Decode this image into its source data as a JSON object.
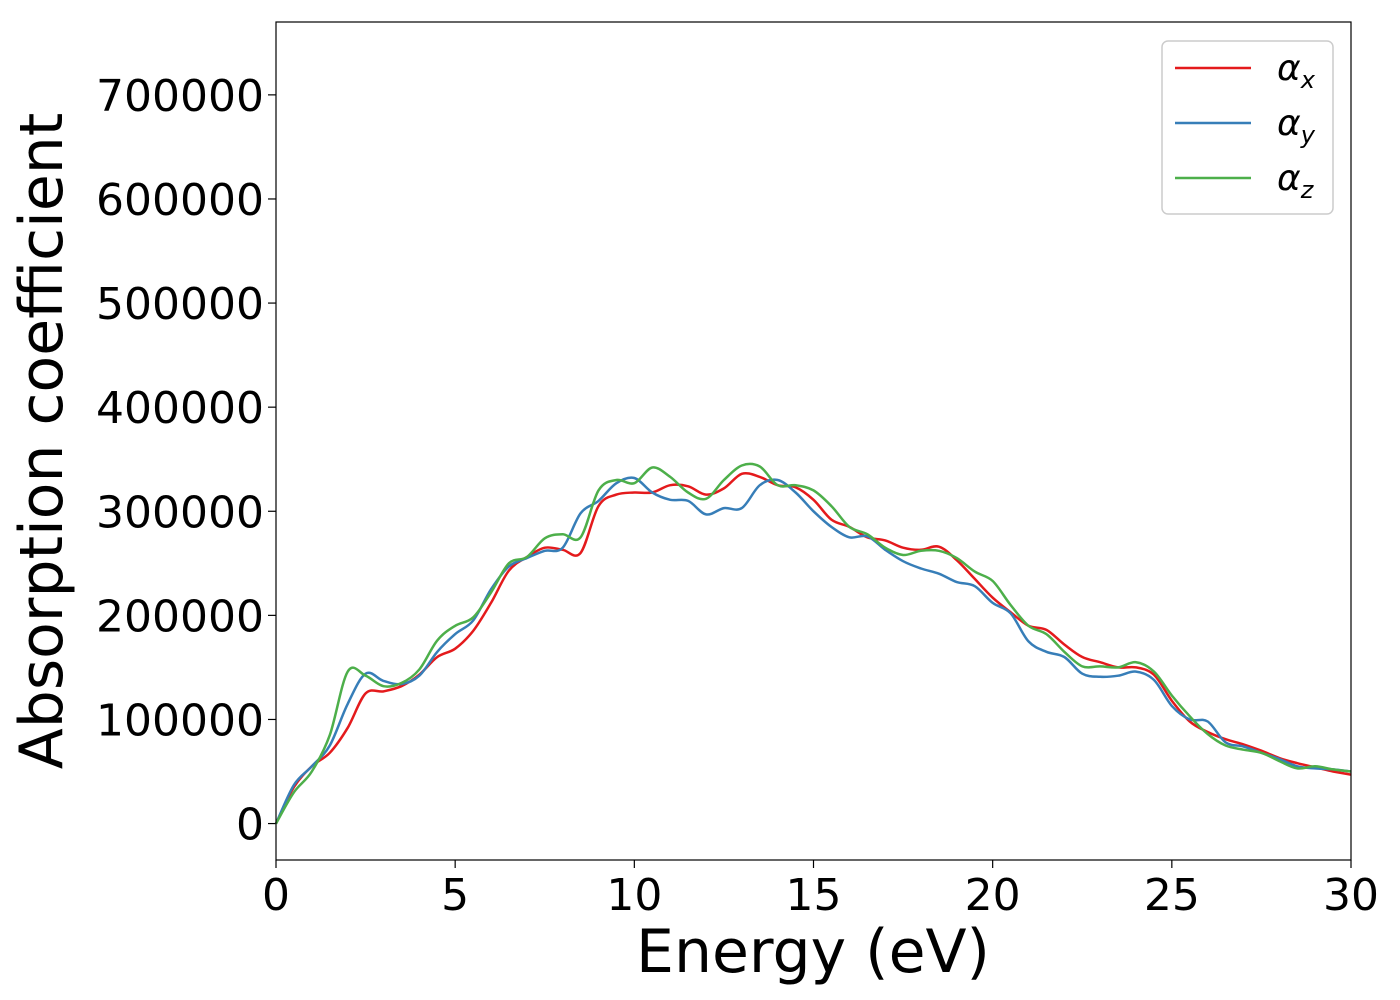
{
  "chart_data": {
    "type": "line",
    "title": "",
    "xlabel": "Energy (eV)",
    "ylabel": "Absorption coefficient",
    "xlim": [
      0,
      30
    ],
    "ylim": [
      -35000,
      770000
    ],
    "xticks": [
      0,
      5,
      10,
      15,
      20,
      25,
      30
    ],
    "yticks": [
      0,
      100000,
      200000,
      300000,
      400000,
      500000,
      600000,
      700000
    ],
    "legend_position": "top-right",
    "x": [
      0,
      0.5,
      1,
      1.5,
      2,
      2.5,
      3,
      3.5,
      4,
      4.5,
      5,
      5.5,
      6,
      6.5,
      7,
      7.5,
      8,
      8.5,
      9,
      9.5,
      10,
      10.5,
      11,
      11.5,
      12,
      12.5,
      13,
      13.5,
      14,
      14.5,
      15,
      15.5,
      16,
      16.5,
      17,
      17.5,
      18,
      18.5,
      19,
      19.5,
      20,
      20.5,
      21,
      21.5,
      22,
      22.5,
      23,
      23.5,
      24,
      24.5,
      25,
      25.5,
      26,
      26.5,
      27,
      27.5,
      28,
      28.5,
      29,
      29.5,
      30
    ],
    "series": [
      {
        "name": "α",
        "subscript": "x",
        "color": "#e41a1c",
        "values": [
          0,
          35000,
          55000,
          68000,
          92000,
          125000,
          127000,
          132000,
          143000,
          160000,
          168000,
          185000,
          212000,
          243000,
          256000,
          265000,
          263000,
          260000,
          305000,
          316000,
          318000,
          318000,
          325000,
          324000,
          316000,
          322000,
          336000,
          333000,
          325000,
          323000,
          311000,
          292000,
          285000,
          275000,
          272000,
          265000,
          263000,
          266000,
          253000,
          235000,
          217000,
          203000,
          190000,
          186000,
          172000,
          160000,
          155000,
          150000,
          150000,
          143000,
          118000,
          98000,
          88000,
          81000,
          76000,
          70000,
          63000,
          58000,
          54000,
          50000,
          47000
        ]
      },
      {
        "name": "α",
        "subscript": "y",
        "color": "#377eb8",
        "values": [
          0,
          37000,
          55000,
          75000,
          115000,
          144000,
          137000,
          134000,
          142000,
          165000,
          182000,
          195000,
          225000,
          247000,
          255000,
          262000,
          265000,
          298000,
          310000,
          327000,
          332000,
          318000,
          311000,
          310000,
          297000,
          303000,
          303000,
          325000,
          330000,
          318000,
          300000,
          285000,
          275000,
          276000,
          263000,
          252000,
          245000,
          240000,
          232000,
          228000,
          212000,
          202000,
          175000,
          165000,
          160000,
          144000,
          141000,
          142000,
          146000,
          138000,
          113000,
          100000,
          98000,
          78000,
          74000,
          68000,
          62000,
          55000,
          53000,
          52000,
          50000
        ]
      },
      {
        "name": "α",
        "subscript": "z",
        "color": "#4daf4a",
        "values": [
          0,
          30000,
          50000,
          85000,
          146000,
          142000,
          132000,
          135000,
          148000,
          176000,
          190000,
          198000,
          222000,
          250000,
          256000,
          274000,
          278000,
          275000,
          320000,
          330000,
          327000,
          342000,
          333000,
          318000,
          312000,
          330000,
          344000,
          343000,
          325000,
          325000,
          320000,
          305000,
          285000,
          278000,
          265000,
          258000,
          262000,
          262000,
          255000,
          242000,
          233000,
          210000,
          190000,
          182000,
          165000,
          151000,
          151000,
          150000,
          155000,
          146000,
          123000,
          103000,
          86000,
          75000,
          71000,
          68000,
          60000,
          53000,
          55000,
          52000,
          50000
        ]
      }
    ]
  }
}
